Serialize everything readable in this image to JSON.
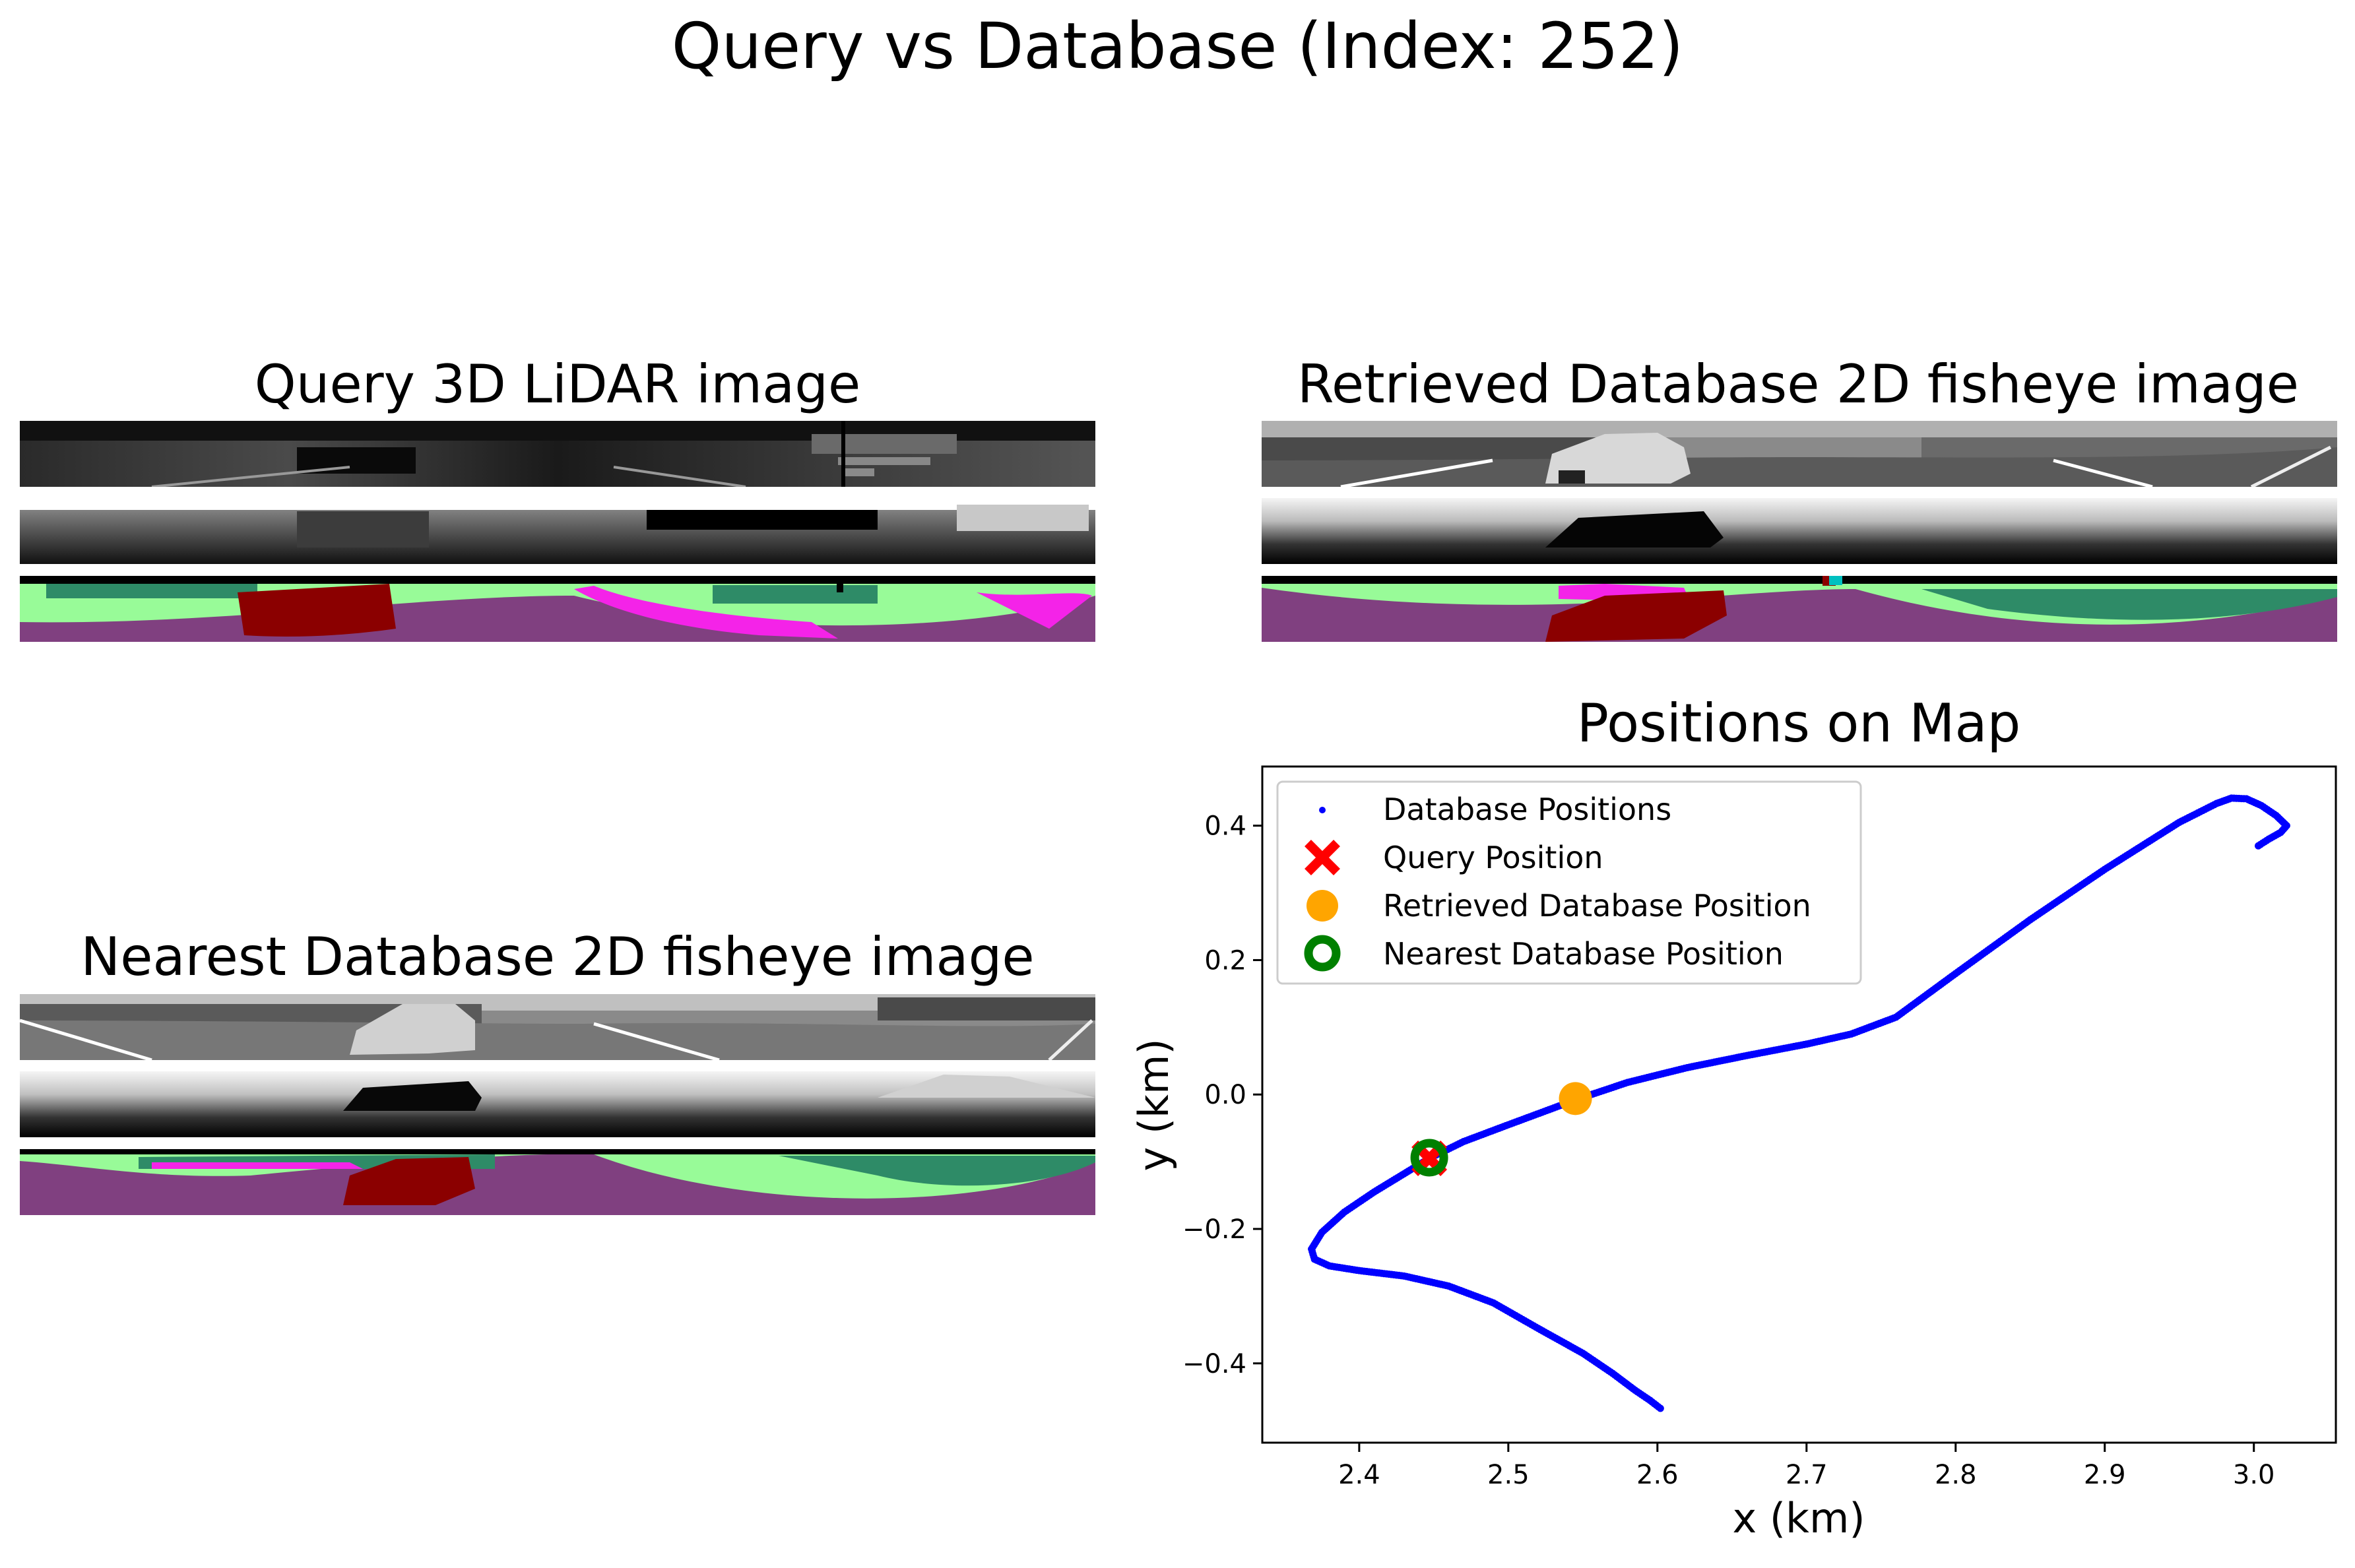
{
  "figure": {
    "title": "Query vs Database (Index: 252)"
  },
  "panels": {
    "query": {
      "title": "Query 3D LiDAR image",
      "image_rows": [
        "intensity",
        "range",
        "semantic"
      ]
    },
    "retrieved": {
      "title": "Retrieved Database 2D fisheye image",
      "image_rows": [
        "grayscale",
        "depth",
        "semantic"
      ]
    },
    "nearest": {
      "title": "Nearest Database 2D fisheye image",
      "image_rows": [
        "grayscale",
        "depth",
        "semantic"
      ]
    }
  },
  "colors": {
    "trajectory": "#0000ff",
    "query": "#ff0000",
    "retrieved": "#ffa500",
    "nearest": "#008000",
    "road": "#804080",
    "vegetation": "#98fb98",
    "terrain": "#2e8b67",
    "car": "#8b0000",
    "sidewalk": "#f423e8"
  },
  "chart_data": {
    "type": "scatter",
    "title": "Positions on Map",
    "xlabel": "x (km)",
    "ylabel": "y (km)",
    "xlim": [
      2.335,
      3.055
    ],
    "ylim": [
      -0.518,
      0.488
    ],
    "xticks": [
      "2.4",
      "2.5",
      "2.6",
      "2.7",
      "2.8",
      "2.9",
      "3.0"
    ],
    "xtick_values": [
      2.4,
      2.5,
      2.6,
      2.7,
      2.8,
      2.9,
      3.0
    ],
    "yticks": [
      "−0.4",
      "−0.2",
      "0.0",
      "0.2",
      "0.4"
    ],
    "ytick_values": [
      -0.4,
      -0.2,
      0.0,
      0.2,
      0.4
    ],
    "grid": false,
    "legend_position": "upper-left",
    "series": [
      {
        "name": "Database Positions",
        "marker": "dot",
        "x": [
          2.602,
          2.595,
          2.585,
          2.57,
          2.55,
          2.52,
          2.49,
          2.46,
          2.43,
          2.4,
          2.38,
          2.37,
          2.368,
          2.375,
          2.39,
          2.41,
          2.43,
          2.447,
          2.47,
          2.5,
          2.545,
          2.58,
          2.62,
          2.66,
          2.7,
          2.73,
          2.76,
          2.8,
          2.85,
          2.9,
          2.95,
          2.975,
          2.985,
          2.995,
          3.005,
          3.015,
          3.022,
          3.018,
          3.01,
          3.003
        ],
        "y": [
          -0.467,
          -0.455,
          -0.44,
          -0.415,
          -0.385,
          -0.348,
          -0.31,
          -0.285,
          -0.27,
          -0.262,
          -0.255,
          -0.245,
          -0.23,
          -0.205,
          -0.175,
          -0.145,
          -0.118,
          -0.095,
          -0.07,
          -0.045,
          -0.008,
          0.018,
          0.04,
          0.058,
          0.075,
          0.09,
          0.115,
          0.18,
          0.26,
          0.335,
          0.405,
          0.433,
          0.441,
          0.44,
          0.43,
          0.415,
          0.4,
          0.39,
          0.38,
          0.37
        ]
      },
      {
        "name": "Query Position",
        "marker": "x",
        "x": [
          2.447
        ],
        "y": [
          -0.095
        ]
      },
      {
        "name": "Retrieved Database Position",
        "marker": "circle",
        "x": [
          2.545
        ],
        "y": [
          -0.006
        ]
      },
      {
        "name": "Nearest Database Position",
        "marker": "ring",
        "x": [
          2.447
        ],
        "y": [
          -0.094
        ]
      }
    ]
  }
}
